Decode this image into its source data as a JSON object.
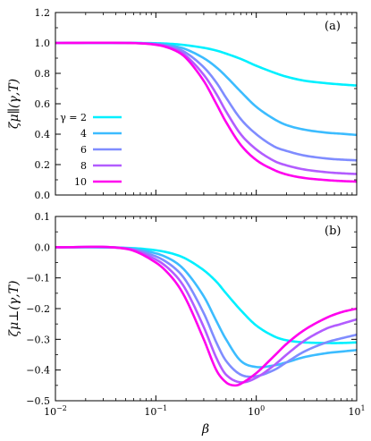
{
  "chart_data": [
    {
      "type": "line",
      "panel_label": "(a)",
      "xlabel": "β",
      "ylabel": "ζμ∥(γ,T)",
      "xscale": "log",
      "xlim": [
        0.01,
        10
      ],
      "ylim": [
        0.0,
        1.2
      ],
      "xticks": [
        0.01,
        0.1,
        1,
        10
      ],
      "xtick_labels": [
        {
          "base": "10",
          "exp": "−2"
        },
        {
          "base": "10",
          "exp": "−1"
        },
        {
          "base": "10",
          "exp": "0"
        },
        {
          "base": "10",
          "exp": "1"
        }
      ],
      "yticks": [
        0.0,
        0.2,
        0.4,
        0.6,
        0.8,
        1.0,
        1.2
      ],
      "ytick_labels": [
        "0.0",
        "0.2",
        "0.4",
        "0.6",
        "0.8",
        "1.0",
        "1.2"
      ],
      "legend_title": "γ = 2",
      "legend_position": "left",
      "series": [
        {
          "name": "2",
          "color": "#00f0ff",
          "x": [
            0.01,
            0.05,
            0.1,
            0.15,
            0.2,
            0.3,
            0.4,
            0.5,
            0.7,
            1.0,
            1.5,
            2.0,
            3.0,
            5.0,
            7.0,
            10.0
          ],
          "y": [
            1.0,
            1.0,
            0.998,
            0.993,
            0.985,
            0.968,
            0.95,
            0.93,
            0.895,
            0.85,
            0.805,
            0.778,
            0.752,
            0.735,
            0.727,
            0.72
          ]
        },
        {
          "name": "4",
          "color": "#3cbcff",
          "x": [
            0.01,
            0.05,
            0.1,
            0.15,
            0.2,
            0.3,
            0.4,
            0.5,
            0.7,
            1.0,
            1.5,
            2.0,
            3.0,
            5.0,
            7.0,
            10.0
          ],
          "y": [
            1.0,
            1.0,
            0.995,
            0.98,
            0.958,
            0.9,
            0.84,
            0.78,
            0.68,
            0.58,
            0.5,
            0.46,
            0.43,
            0.41,
            0.403,
            0.395
          ]
        },
        {
          "name": "6",
          "color": "#7f8cff",
          "x": [
            0.01,
            0.05,
            0.1,
            0.15,
            0.2,
            0.3,
            0.4,
            0.5,
            0.7,
            1.0,
            1.5,
            2.0,
            3.0,
            5.0,
            7.0,
            10.0
          ],
          "y": [
            1.0,
            1.0,
            0.992,
            0.97,
            0.935,
            0.84,
            0.74,
            0.64,
            0.5,
            0.4,
            0.32,
            0.29,
            0.26,
            0.24,
            0.233,
            0.228
          ]
        },
        {
          "name": "8",
          "color": "#b25cff",
          "x": [
            0.01,
            0.05,
            0.1,
            0.15,
            0.2,
            0.3,
            0.4,
            0.5,
            0.7,
            1.0,
            1.5,
            2.0,
            3.0,
            5.0,
            7.0,
            10.0
          ],
          "y": [
            1.0,
            1.0,
            0.99,
            0.962,
            0.915,
            0.79,
            0.665,
            0.55,
            0.4,
            0.3,
            0.225,
            0.195,
            0.168,
            0.15,
            0.143,
            0.138
          ]
        },
        {
          "name": "10",
          "color": "#ff00ee",
          "x": [
            0.01,
            0.05,
            0.1,
            0.15,
            0.2,
            0.3,
            0.4,
            0.5,
            0.7,
            1.0,
            1.5,
            2.0,
            3.0,
            5.0,
            7.0,
            10.0
          ],
          "y": [
            1.0,
            1.0,
            0.988,
            0.955,
            0.9,
            0.75,
            0.6,
            0.48,
            0.33,
            0.23,
            0.165,
            0.135,
            0.112,
            0.098,
            0.092,
            0.088
          ]
        }
      ]
    },
    {
      "type": "line",
      "panel_label": "(b)",
      "xlabel": "β",
      "ylabel": "ζμ⊥(γ,T)",
      "xscale": "log",
      "xlim": [
        0.01,
        10
      ],
      "ylim": [
        -0.5,
        0.1
      ],
      "xticks": [
        0.01,
        0.1,
        1,
        10
      ],
      "xtick_labels": [
        {
          "base": "10",
          "exp": "−2"
        },
        {
          "base": "10",
          "exp": "−1"
        },
        {
          "base": "10",
          "exp": "0"
        },
        {
          "base": "10",
          "exp": "1"
        }
      ],
      "yticks": [
        -0.5,
        -0.4,
        -0.3,
        -0.2,
        -0.1,
        0.0,
        0.1
      ],
      "ytick_labels": [
        "−0.5",
        "−0.4",
        "−0.3",
        "−0.2",
        "−0.1",
        "0.0",
        "0.1"
      ],
      "series": [
        {
          "name": "2",
          "color": "#00f0ff",
          "x": [
            0.01,
            0.05,
            0.1,
            0.15,
            0.2,
            0.3,
            0.4,
            0.5,
            0.7,
            1.0,
            1.5,
            2.0,
            3.0,
            5.0,
            7.0,
            10.0
          ],
          "y": [
            0.0,
            -0.002,
            -0.01,
            -0.022,
            -0.038,
            -0.075,
            -0.112,
            -0.15,
            -0.205,
            -0.255,
            -0.29,
            -0.303,
            -0.31,
            -0.312,
            -0.312,
            -0.31
          ]
        },
        {
          "name": "4",
          "color": "#3cbcff",
          "x": [
            0.01,
            0.05,
            0.1,
            0.15,
            0.2,
            0.3,
            0.4,
            0.5,
            0.7,
            1.0,
            1.5,
            2.0,
            3.0,
            5.0,
            7.0,
            10.0
          ],
          "y": [
            0.0,
            -0.003,
            -0.02,
            -0.045,
            -0.08,
            -0.16,
            -0.24,
            -0.3,
            -0.37,
            -0.39,
            -0.385,
            -0.375,
            -0.358,
            -0.345,
            -0.34,
            -0.335
          ]
        },
        {
          "name": "6",
          "color": "#7f8cff",
          "x": [
            0.01,
            0.05,
            0.1,
            0.15,
            0.2,
            0.3,
            0.4,
            0.5,
            0.7,
            1.0,
            1.5,
            2.0,
            3.0,
            5.0,
            7.0,
            10.0
          ],
          "y": [
            0.0,
            -0.003,
            -0.03,
            -0.065,
            -0.11,
            -0.215,
            -0.31,
            -0.37,
            -0.415,
            -0.42,
            -0.4,
            -0.375,
            -0.34,
            -0.31,
            -0.297,
            -0.285
          ]
        },
        {
          "name": "8",
          "color": "#b25cff",
          "x": [
            0.01,
            0.05,
            0.1,
            0.15,
            0.2,
            0.3,
            0.4,
            0.5,
            0.7,
            1.0,
            1.5,
            2.0,
            3.0,
            5.0,
            7.0,
            10.0
          ],
          "y": [
            0.0,
            -0.004,
            -0.04,
            -0.085,
            -0.14,
            -0.26,
            -0.36,
            -0.415,
            -0.44,
            -0.425,
            -0.385,
            -0.35,
            -0.305,
            -0.265,
            -0.25,
            -0.235
          ]
        },
        {
          "name": "10",
          "color": "#ff00ee",
          "x": [
            0.01,
            0.05,
            0.1,
            0.15,
            0.2,
            0.3,
            0.4,
            0.5,
            0.6,
            0.7,
            1.0,
            1.5,
            2.0,
            3.0,
            5.0,
            7.0,
            10.0
          ],
          "y": [
            0.0,
            -0.005,
            -0.05,
            -0.105,
            -0.17,
            -0.3,
            -0.4,
            -0.44,
            -0.45,
            -0.445,
            -0.41,
            -0.355,
            -0.315,
            -0.27,
            -0.23,
            -0.212,
            -0.2
          ]
        }
      ]
    }
  ]
}
